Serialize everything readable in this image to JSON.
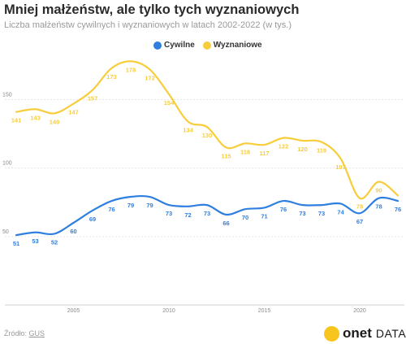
{
  "header": {
    "title": "Mniej małżeństw, ale tylko tych wyznaniowych",
    "subtitle": "Liczba małżeństw cywilnych i wyznaniowych w latach 2002-2022 (w tys.)"
  },
  "footer": {
    "source_prefix": "Źródło: ",
    "source_name": "GUS",
    "brand": "onet",
    "brand_suffix": "DATA",
    "brand_color": "#f7c51e"
  },
  "chart_data": {
    "type": "line",
    "title": "Mniej małżeństw, ale tylko tych wyznaniowych",
    "subtitle": "Liczba małżeństw cywilnych i wyznaniowych w latach 2002-2022 (w tys.)",
    "xlabel": "",
    "ylabel": "",
    "x": [
      2002,
      2003,
      2004,
      2005,
      2006,
      2007,
      2008,
      2009,
      2010,
      2011,
      2012,
      2013,
      2014,
      2015,
      2016,
      2017,
      2018,
      2019,
      2020,
      2021,
      2022
    ],
    "x_ticks": [
      2005,
      2010,
      2015,
      2020
    ],
    "y_ticks": [
      50,
      100,
      150
    ],
    "xlim": [
      2002,
      2022
    ],
    "ylim": [
      0,
      180
    ],
    "grid": "horizontal",
    "legend_position": "top-center",
    "series": [
      {
        "name": "Cywilne",
        "color": "#2f7fe0",
        "values": [
          51,
          53,
          52,
          60,
          69,
          76,
          79,
          79,
          73,
          72,
          73,
          66,
          70,
          71,
          76,
          73,
          73,
          74,
          67,
          78,
          76
        ]
      },
      {
        "name": "Wyznaniowe",
        "color": "#f7cd3c",
        "values": [
          141,
          143,
          140,
          147,
          157,
          173,
          178,
          172,
          154,
          134,
          130,
          115,
          118,
          117,
          122,
          120,
          119,
          107,
          78,
          90,
          null
        ]
      }
    ]
  }
}
